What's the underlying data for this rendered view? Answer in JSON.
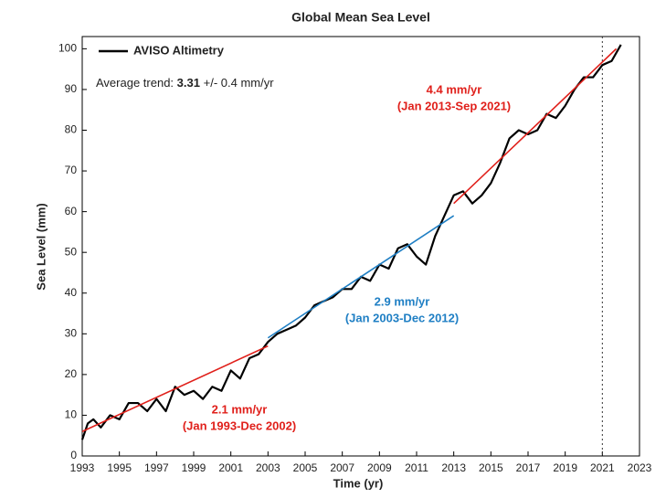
{
  "chart_data": {
    "type": "line",
    "title": "Global Mean Sea Level",
    "xlabel": "Time (yr)",
    "ylabel": "Sea Level (mm)",
    "xlim": [
      1993,
      2023
    ],
    "ylim": [
      0,
      103
    ],
    "xticks": [
      1993,
      1995,
      1997,
      1999,
      2001,
      2003,
      2005,
      2007,
      2009,
      2011,
      2013,
      2015,
      2017,
      2019,
      2021,
      2023
    ],
    "yticks": [
      0,
      10,
      20,
      30,
      40,
      50,
      60,
      70,
      80,
      90,
      100
    ],
    "legend": "upper left",
    "x": [
      1993.0,
      1993.3,
      1993.6,
      1994.0,
      1994.5,
      1995.0,
      1995.5,
      1996.0,
      1996.5,
      1997.0,
      1997.5,
      1998.0,
      1998.5,
      1999.0,
      1999.5,
      2000.0,
      2000.5,
      2001.0,
      2001.5,
      2002.0,
      2002.5,
      2003.0,
      2003.5,
      2004.0,
      2004.5,
      2005.0,
      2005.5,
      2006.0,
      2006.5,
      2007.0,
      2007.5,
      2008.0,
      2008.5,
      2009.0,
      2009.5,
      2010.0,
      2010.5,
      2011.0,
      2011.5,
      2012.0,
      2012.5,
      2013.0,
      2013.5,
      2014.0,
      2014.5,
      2015.0,
      2015.5,
      2016.0,
      2016.5,
      2017.0,
      2017.5,
      2018.0,
      2018.5,
      2019.0,
      2019.5,
      2020.0,
      2020.5,
      2021.0,
      2021.5,
      2022.0
    ],
    "series": [
      {
        "name": "AVISO Altimetry",
        "color": "#000000",
        "values": [
          4,
          8,
          9,
          7,
          10,
          9,
          13,
          13,
          11,
          14,
          11,
          17,
          15,
          16,
          14,
          17,
          16,
          21,
          19,
          24,
          25,
          28,
          30,
          31,
          32,
          34,
          37,
          38,
          39,
          41,
          41,
          44,
          43,
          47,
          46,
          51,
          52,
          49,
          47,
          54,
          59,
          64,
          65,
          62,
          64,
          67,
          72,
          78,
          80,
          79,
          80,
          84,
          83,
          86,
          90,
          93,
          93,
          96,
          97,
          101
        ]
      }
    ],
    "trends": [
      {
        "label": "2.1 mm/yr",
        "period": "(Jan 1993-Dec 2002)",
        "color": "#e0201b",
        "x": [
          1993,
          2003
        ],
        "values": [
          6,
          27
        ]
      },
      {
        "label": "2.9 mm/yr",
        "period": "(Jan 2003-Dec 2012)",
        "color": "#1f7fc4",
        "x": [
          2003,
          2013
        ],
        "values": [
          29,
          59
        ]
      },
      {
        "label": "4.4 mm/yr",
        "period": "(Jan 2013-Sep 2021)",
        "color": "#e0201b",
        "x": [
          2013,
          2021.75
        ],
        "values": [
          62,
          100
        ]
      }
    ],
    "average_trend": {
      "label": "Average trend:",
      "value": "3.31",
      "unit": "+/- 0.4 mm/yr"
    },
    "vline": 2021
  }
}
